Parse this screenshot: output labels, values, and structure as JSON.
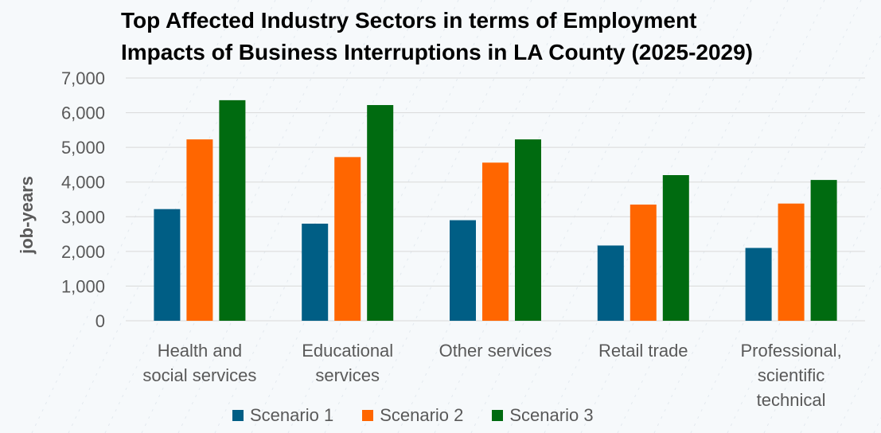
{
  "chart_data": {
    "type": "bar",
    "title": "Top Affected Industry Sectors in terms of Employment\nImpacts of Business Interruptions in LA County (2025-2029)",
    "ylabel": "job-years",
    "xlabel": "",
    "ylim": [
      0,
      7000
    ],
    "yticks": [
      0,
      1000,
      2000,
      3000,
      4000,
      5000,
      6000,
      7000
    ],
    "ytick_labels": [
      "0",
      "1,000",
      "2,000",
      "3,000",
      "4,000",
      "5,000",
      "6,000",
      "7,000"
    ],
    "categories": [
      [
        "Health and",
        "social services"
      ],
      [
        "Educational",
        "services"
      ],
      [
        "Other services"
      ],
      [
        "Retail trade"
      ],
      [
        "Professional,",
        "scientific",
        "technical"
      ]
    ],
    "series": [
      {
        "name": "Scenario 1",
        "color": "#005e85",
        "values": [
          3220,
          2800,
          2900,
          2170,
          2100
        ]
      },
      {
        "name": "Scenario 2",
        "color": "#ff6600",
        "values": [
          5230,
          4720,
          4560,
          3350,
          3380
        ]
      },
      {
        "name": "Scenario 3",
        "color": "#006b10",
        "values": [
          6360,
          6220,
          5230,
          4200,
          4060
        ]
      }
    ],
    "grid": true,
    "legend_position": "bottom"
  }
}
